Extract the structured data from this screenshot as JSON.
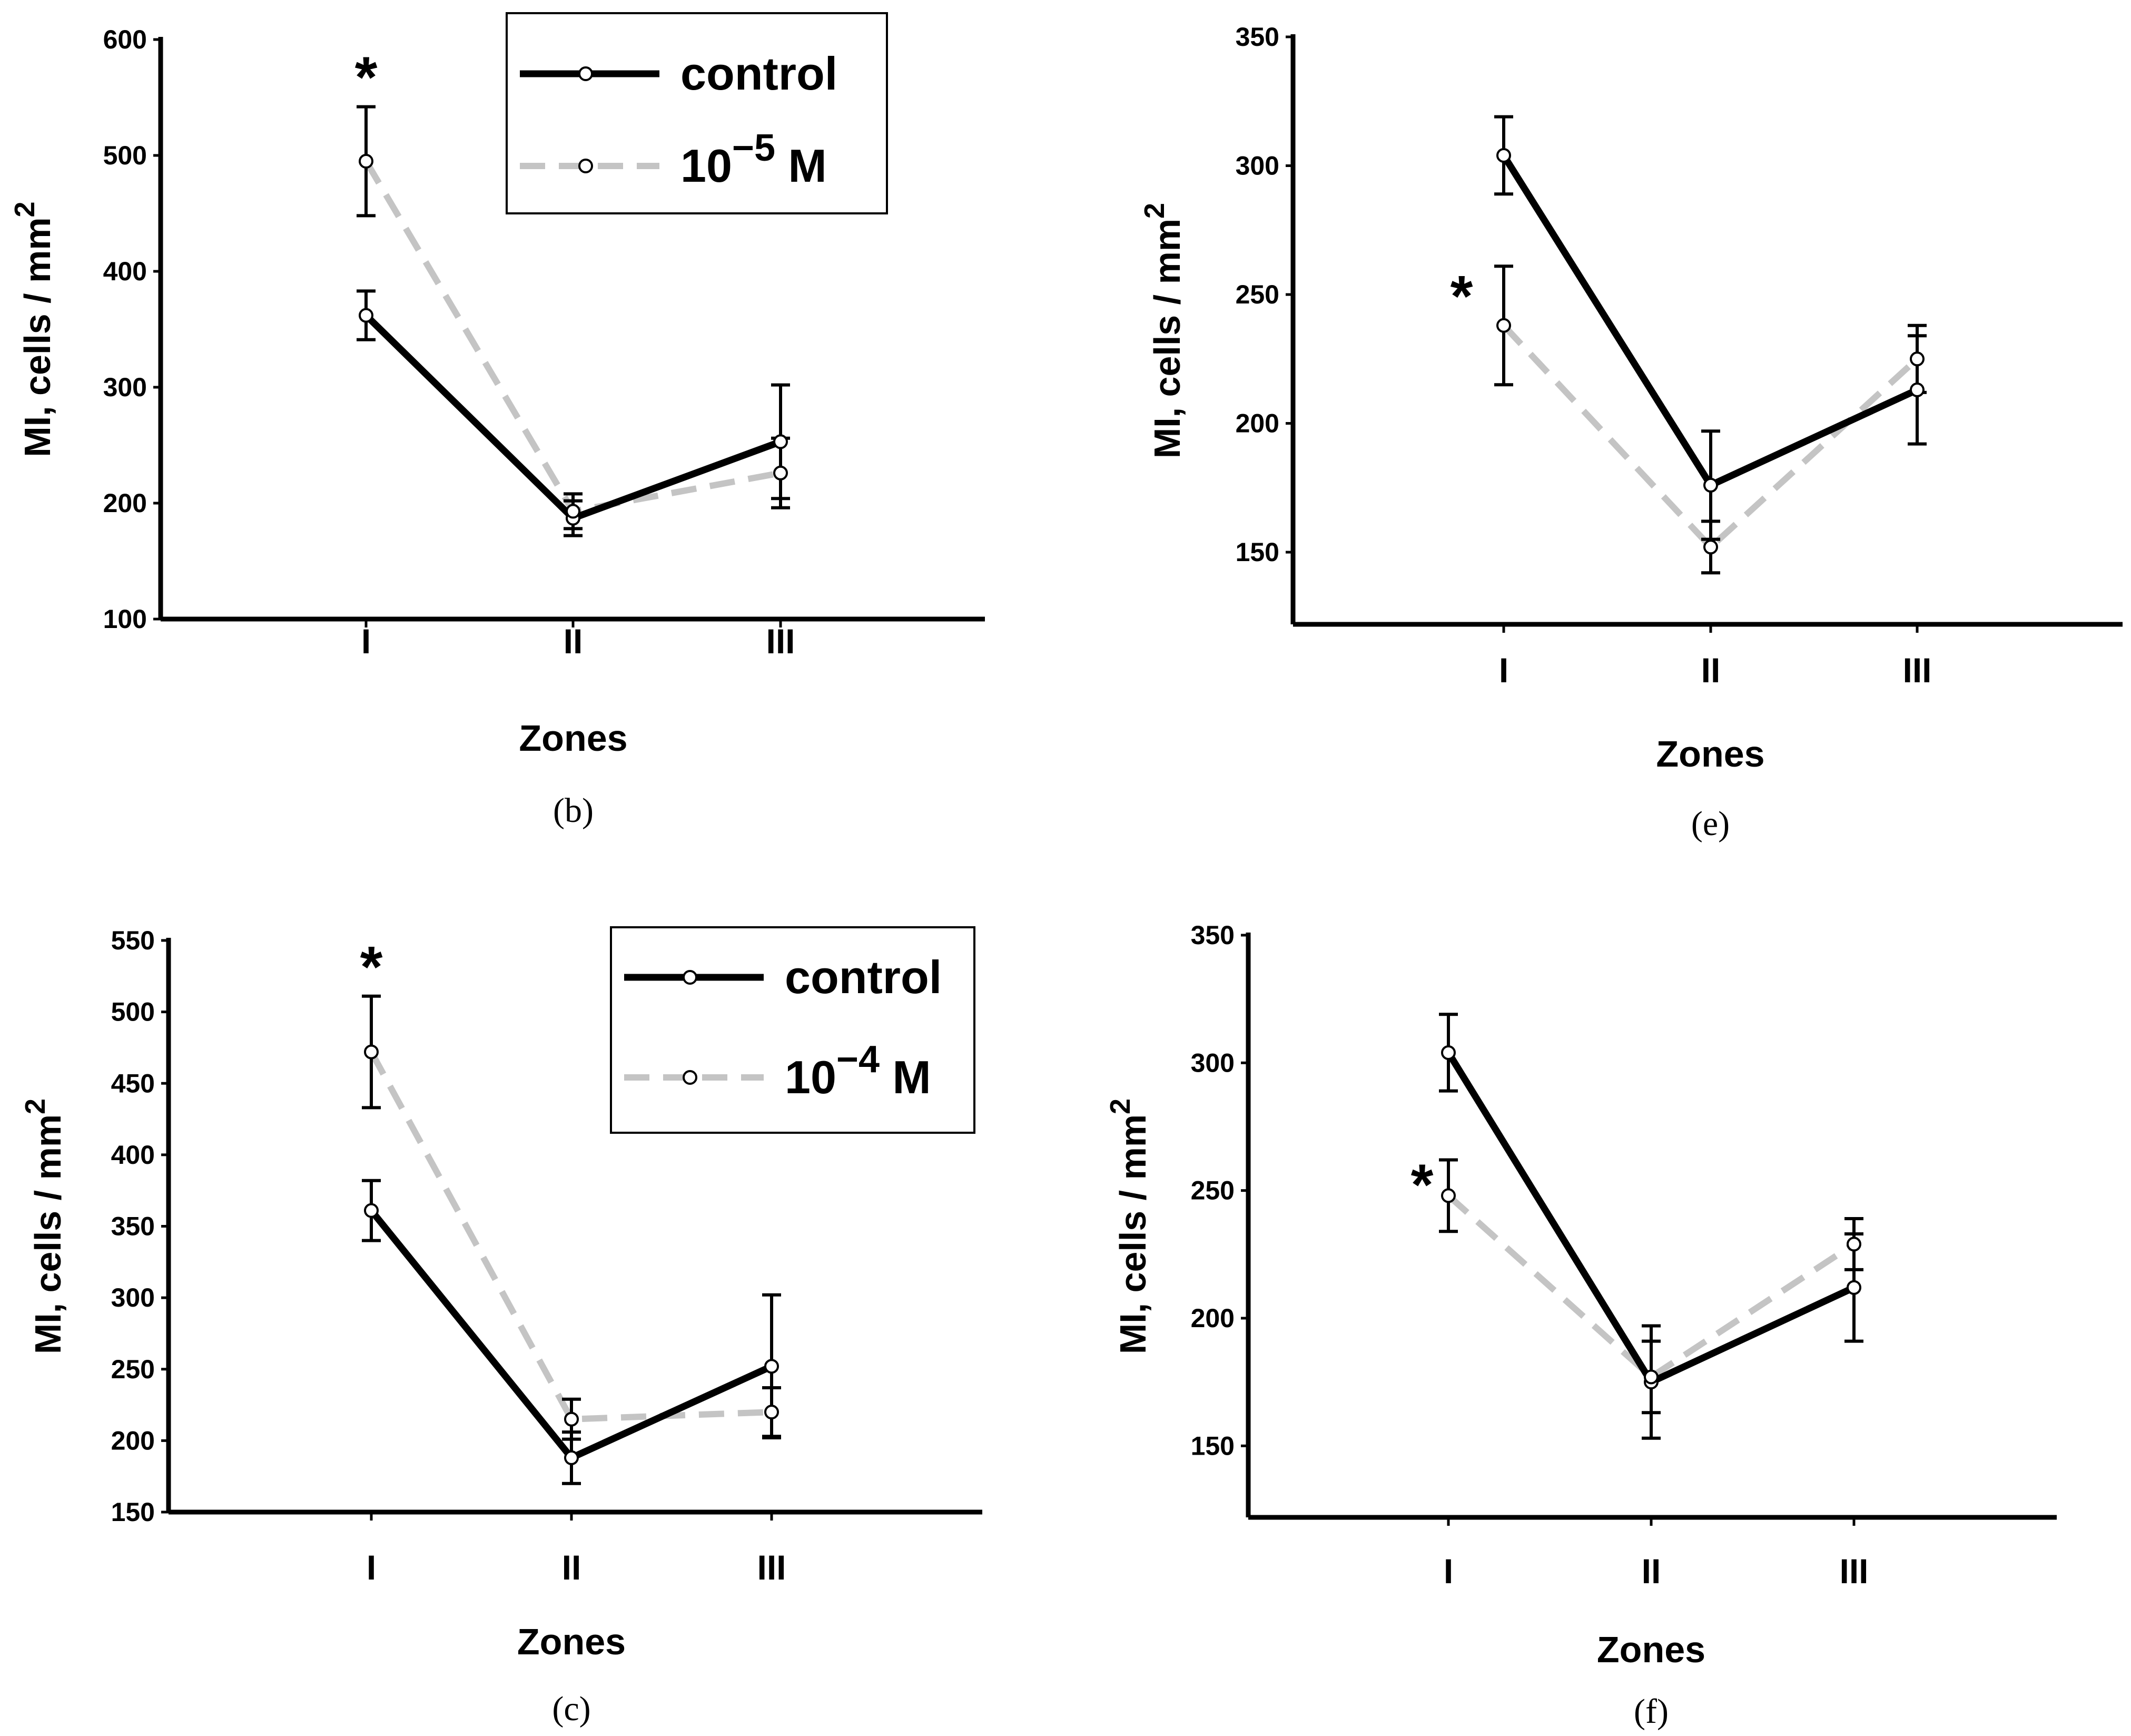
{
  "colors": {
    "control": "#000000",
    "treated": "#c4c4c4",
    "axis": "#000000"
  },
  "chart_data": [
    {
      "id": "b",
      "type": "line",
      "caption": "(b)",
      "xlabel": "Zones",
      "ylabel": "MI, cells / mm",
      "ylabel_sup": "2",
      "categories": [
        "I",
        "II",
        "III"
      ],
      "ylim": [
        100,
        600
      ],
      "yticks": [
        100,
        200,
        300,
        400,
        500,
        600
      ],
      "legend": {
        "placement": "top-right",
        "entries": [
          {
            "label": "control"
          },
          {
            "base": "10",
            "sup": "−5",
            "unit": " M"
          }
        ]
      },
      "series": [
        {
          "name": "control",
          "values": [
            362,
            187,
            253
          ],
          "errors": [
            21,
            15,
            49
          ]
        },
        {
          "name": "10−5 M",
          "values": [
            495,
            193,
            226
          ],
          "errors": [
            47,
            15,
            30
          ]
        }
      ],
      "significance": [
        {
          "series": 1,
          "index": 0,
          "label": "*"
        }
      ]
    },
    {
      "id": "e",
      "type": "line",
      "caption": "(e)",
      "xlabel": "Zones",
      "ylabel": "MI, cells / mm",
      "ylabel_sup": "2",
      "categories": [
        "I",
        "II",
        "III"
      ],
      "ylim": [
        122,
        350
      ],
      "yticks": [
        150,
        200,
        250,
        300,
        350
      ],
      "series": [
        {
          "name": "control",
          "values": [
            304,
            176,
            213
          ],
          "errors": [
            15,
            21,
            21
          ]
        },
        {
          "name": "10−5 M",
          "values": [
            238,
            152,
            225
          ],
          "errors": [
            23,
            10,
            13
          ]
        }
      ],
      "significance": [
        {
          "series": 1,
          "index": 0,
          "label": "*"
        }
      ]
    },
    {
      "id": "c",
      "type": "line",
      "caption": "(c)",
      "xlabel": "Zones",
      "ylabel": "MI, cells / mm",
      "ylabel_sup": "2",
      "categories": [
        "I",
        "II",
        "III"
      ],
      "ylim": [
        150,
        550
      ],
      "yticks": [
        150,
        200,
        250,
        300,
        350,
        400,
        450,
        500,
        550
      ],
      "legend": {
        "placement": "top-right",
        "entries": [
          {
            "label": "control"
          },
          {
            "base": "10",
            "sup": "−4",
            "unit": " M"
          }
        ]
      },
      "series": [
        {
          "name": "control",
          "values": [
            361,
            188,
            252
          ],
          "errors": [
            21,
            18,
            50
          ]
        },
        {
          "name": "10−4 M",
          "values": [
            472,
            215,
            220
          ],
          "errors": [
            39,
            14,
            17
          ]
        }
      ],
      "significance": [
        {
          "series": 1,
          "index": 0,
          "label": "*"
        }
      ]
    },
    {
      "id": "f",
      "type": "line",
      "caption": "(f)",
      "xlabel": "Zones",
      "ylabel": "MI, cells / mm",
      "ylabel_sup": "2",
      "categories": [
        "I",
        "II",
        "III"
      ],
      "ylim": [
        122,
        350
      ],
      "yticks": [
        150,
        200,
        250,
        300,
        350
      ],
      "series": [
        {
          "name": "control",
          "values": [
            304,
            175,
            212
          ],
          "errors": [
            15,
            22,
            21
          ]
        },
        {
          "name": "10−4 M",
          "values": [
            248,
            177,
            229
          ],
          "errors": [
            14,
            14,
            10
          ]
        }
      ],
      "significance": [
        {
          "series": 1,
          "index": 0,
          "label": "*"
        }
      ]
    }
  ]
}
